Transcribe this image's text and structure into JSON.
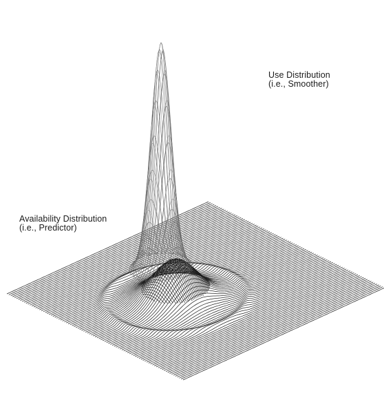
{
  "labels": {
    "use": {
      "line1": "Use Distribution",
      "line2": "(i.e., Smoother)"
    },
    "availability": {
      "line1": "Availability Distribution",
      "line2": "(i.e., Predictor)"
    }
  },
  "colors": {
    "background": "#ffffff",
    "mesh_line": "#1e1e1e",
    "use_mesh_line": "#6a6a6a"
  }
}
